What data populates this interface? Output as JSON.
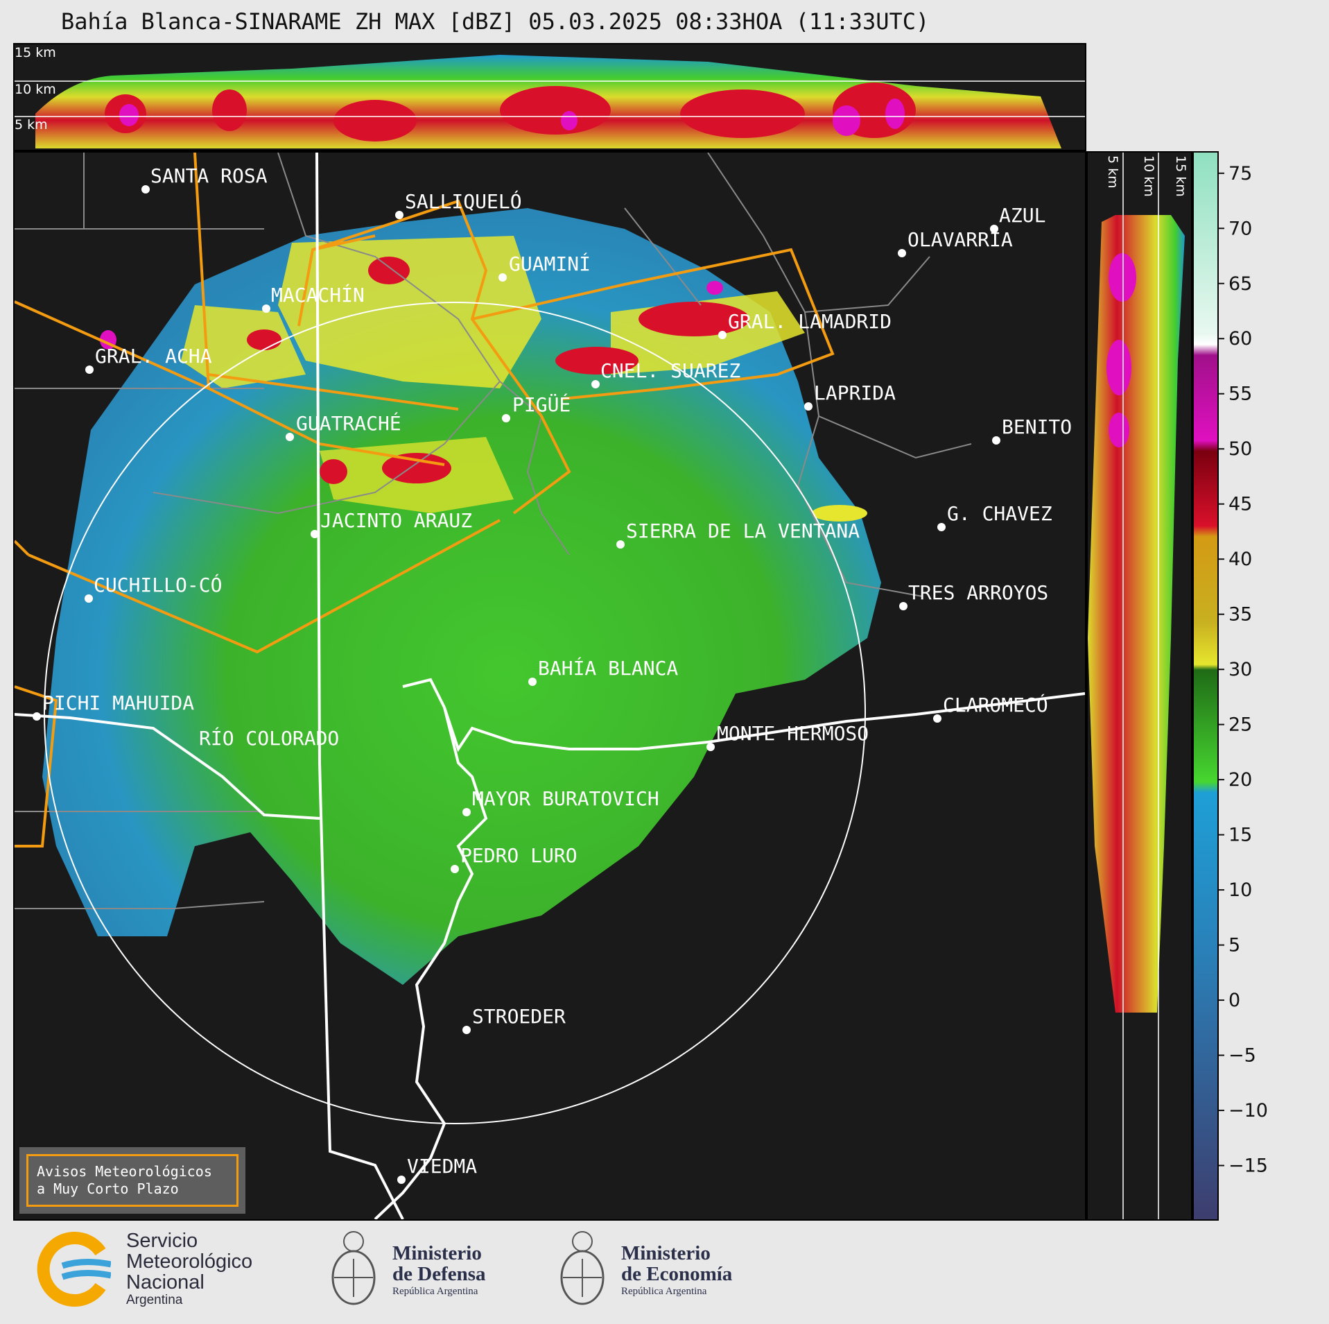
{
  "title": "Bahía Blanca-SINARAME ZH MAX [dBZ] 05.03.2025 08:33HOA (11:33UTC)",
  "top_panel": {
    "altitude_labels": [
      "15 km",
      "10 km",
      "5 km"
    ]
  },
  "side_panel": {
    "altitude_labels": [
      "5 km",
      "10 km",
      "15 km"
    ]
  },
  "colorbar": {
    "unit": "dBZ",
    "tick_labels": [
      "75",
      "70",
      "65",
      "60",
      "55",
      "50",
      "45",
      "40",
      "35",
      "30",
      "25",
      "20",
      "15",
      "10",
      "5",
      "0",
      "−5",
      "−10",
      "−15"
    ],
    "range": [
      -20,
      77
    ],
    "colors": {
      "lt_m20": "#3d3d6e",
      "lt_0": "#3a5e99",
      "lt_18": "#1e9fd6",
      "lt_20": "#47d630",
      "lt_30": "#2a7a1c",
      "lt_36": "#e6e62e",
      "lt_42": "#d49a14",
      "lt_49": "#d9102a",
      "lt_59": "#e010c0",
      "lt_61": "#ffffff",
      "lt_77": "#8fe0c0"
    }
  },
  "map": {
    "cities": [
      "SANTA ROSA",
      "SALLIQUELÓ",
      "AZUL",
      "OLAVARRÍA",
      "GUAMINÍ",
      "MACACHÍN",
      "GRAL. LAMADRID",
      "GRAL. ACHA",
      "CNEL. SUAREZ",
      "LAPRIDA",
      "PIGÜÉ",
      "GUATRACHÉ",
      "BENITO",
      "G. CHAVEZ",
      "JACINTO ARAUZ",
      "SIERRA DE LA VENTANA",
      "CUCHILLO-CÓ",
      "TRES ARROYOS",
      "BAHÍA BLANCA",
      "PICHI MAHUIDA",
      "CLAROMECÓ",
      "MONTE HERMOSO",
      "RÍO COLORADO",
      "MAYOR BURATOVICH",
      "PEDRO LURO",
      "STROEDER",
      "VIEDMA"
    ],
    "alerts_box": {
      "line1": "Avisos Meteorológicos",
      "line2": "a Muy Corto Plazo"
    }
  },
  "logos": {
    "smn": {
      "line1": "Servicio",
      "line2": "Meteorológico",
      "line3": "Nacional",
      "line4": "Argentina"
    },
    "defensa": {
      "line1": "Ministerio",
      "line2": "de Defensa",
      "line3": "República Argentina"
    },
    "economia": {
      "line1": "Ministerio",
      "line2": "de Economía",
      "line3": "República Argentina"
    }
  }
}
